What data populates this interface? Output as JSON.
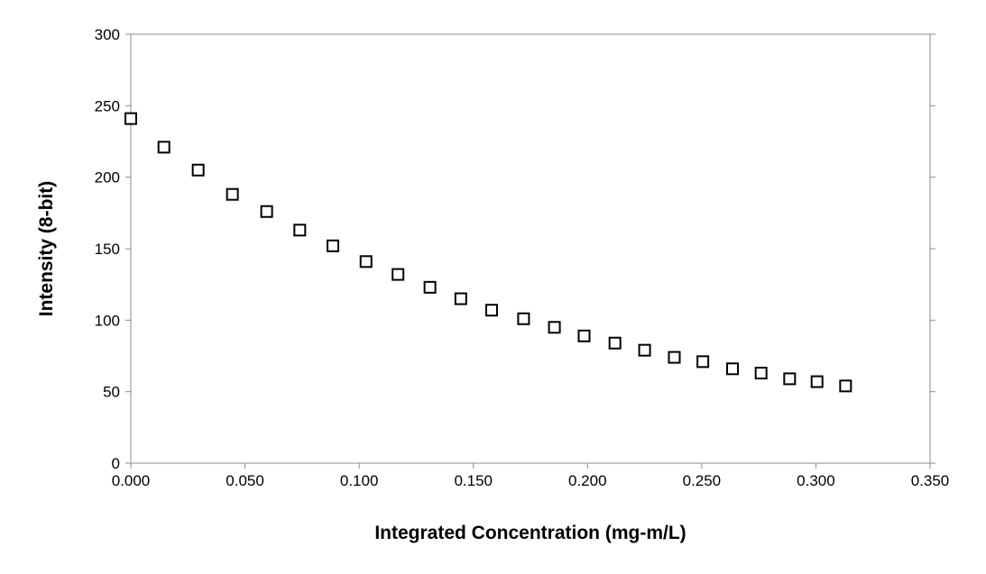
{
  "chart_data": {
    "type": "scatter",
    "title": "",
    "xlabel": "Integrated Concentration (mg-m/L)",
    "ylabel": "Intensity (8-bit)",
    "xlim": [
      0,
      0.35
    ],
    "ylim": [
      0,
      300
    ],
    "x_ticks": [
      "0.000",
      "0.050",
      "0.100",
      "0.150",
      "0.200",
      "0.250",
      "0.300",
      "0.350"
    ],
    "x_tick_values": [
      0,
      0.05,
      0.1,
      0.15,
      0.2,
      0.25,
      0.3,
      0.35
    ],
    "y_ticks": [
      "0",
      "50",
      "100",
      "150",
      "200",
      "250",
      "300"
    ],
    "y_tick_values": [
      0,
      50,
      100,
      150,
      200,
      250,
      300
    ],
    "grid": false,
    "legend": "none",
    "marker": "open-square",
    "marker_color": "#000000",
    "series": [
      {
        "x": [
          0.0,
          0.0145,
          0.0295,
          0.0445,
          0.0595,
          0.074,
          0.0885,
          0.103,
          0.117,
          0.131,
          0.1445,
          0.158,
          0.172,
          0.1855,
          0.1985,
          0.212,
          0.225,
          0.238,
          0.2505,
          0.2635,
          0.276,
          0.2885,
          0.3005,
          0.313
        ],
        "y": [
          241,
          221,
          205,
          188,
          176,
          163,
          152,
          141,
          132,
          123,
          115,
          107,
          101,
          95,
          89,
          84,
          79,
          74,
          71,
          66,
          63,
          59,
          57,
          54
        ]
      }
    ]
  }
}
